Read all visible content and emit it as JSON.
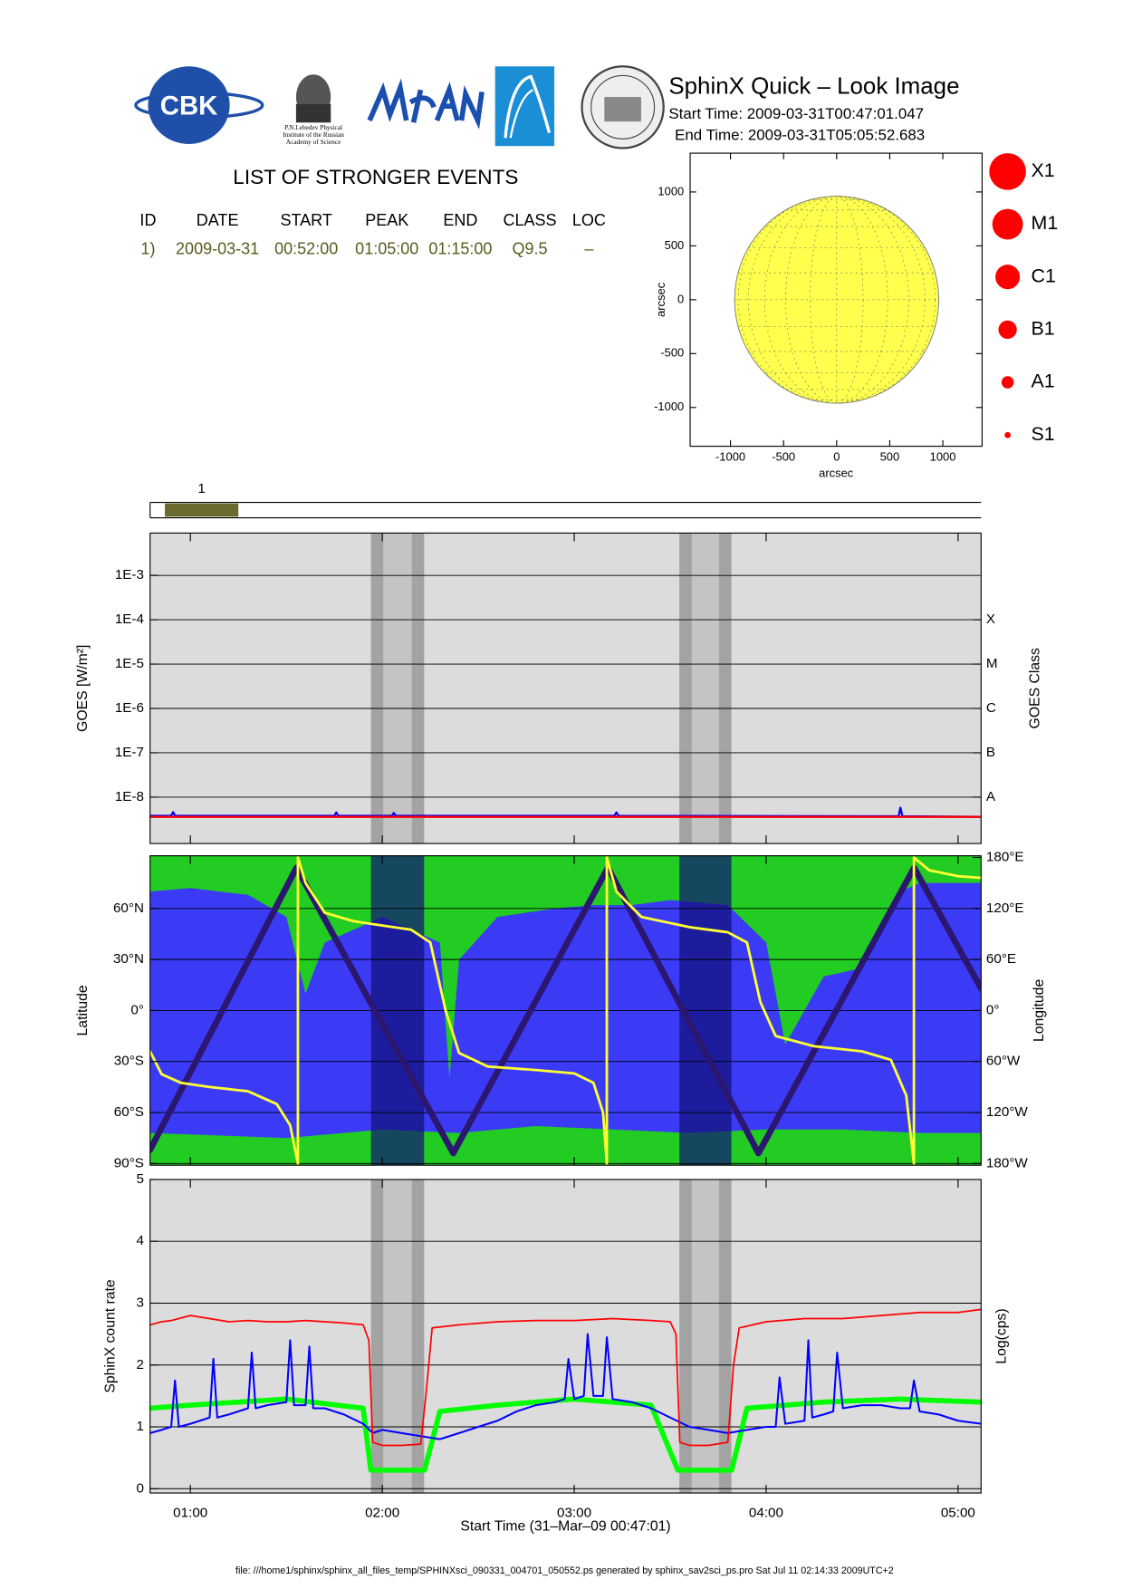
{
  "header": {
    "title": "SphinX Quick – Look Image",
    "start_time": "Start Time: 2009-03-31T00:47:01.047",
    "end_time": "End Time: 2009-03-31T05:05:52.683"
  },
  "logos": {
    "cbk": "CBK",
    "lebedev": [
      "P.N.Lebedev Physical",
      "Institute of the Russian",
      "Academy of Science"
    ]
  },
  "events": {
    "title": "LIST OF STRONGER EVENTS",
    "columns": [
      "ID",
      "DATE",
      "START",
      "PEAK",
      "END",
      "CLASS",
      "LOC"
    ],
    "rows": [
      [
        "1)",
        "2009-03-31",
        "00:52:00",
        "01:05:00",
        "01:15:00",
        "Q9.5",
        "–"
      ]
    ]
  },
  "footer": "file: ///home1/sphinx/sphinx_all_files_temp/SPHINXsci_090331_004701_050552.ps generated by sphinx_sav2sci_ps.pro Sat Jul 11 02:14:33 2009UTC+2",
  "chart_data": [
    {
      "type": "disk",
      "xlabel": "arcsec",
      "ylabel": "arcsec",
      "xlim": [
        -1380,
        1370
      ],
      "ylim": [
        -1360,
        1360
      ],
      "xticks": [
        -1000,
        -500,
        0,
        500,
        1000
      ],
      "yticks": [
        -1000,
        -500,
        0,
        500,
        1000
      ],
      "radius": 961,
      "color": "#ffff4d",
      "legend_labels": [
        "X1",
        "M1",
        "C1",
        "B1",
        "A1",
        "S1"
      ],
      "legend_color": "#ff0000"
    },
    {
      "type": "timeline",
      "xlim": [
        0.79,
        5.12
      ],
      "color": "#6b6b30",
      "events": [
        {
          "label": "1",
          "start": 0.867,
          "end": 1.25
        }
      ]
    },
    {
      "type": "line",
      "ylabel": "GOES [W/m²]",
      "y2label": "GOES Class",
      "xlim": [
        0.79,
        5.12
      ],
      "ylog": true,
      "ylim": [
        9e-10,
        0.009
      ],
      "yticks": [
        {
          "value": 1e-08,
          "label": "1E-8"
        },
        {
          "value": 1e-07,
          "label": "1E-7"
        },
        {
          "value": 1e-06,
          "label": "1E-6"
        },
        {
          "value": 1e-05,
          "label": "1E-5"
        },
        {
          "value": 0.0001,
          "label": "1E-4"
        },
        {
          "value": 0.001,
          "label": "1E-3"
        }
      ],
      "y2lim": [
        9e-10,
        0.009
      ],
      "y2ticks": [
        {
          "value": 1e-08,
          "label": "A"
        },
        {
          "value": 1e-07,
          "label": "B"
        },
        {
          "value": 1e-06,
          "label": "C"
        },
        {
          "value": 1e-05,
          "label": "M"
        },
        {
          "value": 0.0001,
          "label": "X"
        }
      ],
      "background": "#dcdcdc",
      "grid": true,
      "shaded": [
        {
          "x": [
            1.941,
            2.218
          ],
          "color": "#a3a3a3"
        },
        {
          "x": [
            2.005,
            2.154
          ],
          "color": "#c4c4c4"
        },
        {
          "x": [
            3.548,
            3.819
          ],
          "color": "#a3a3a3"
        },
        {
          "x": [
            3.612,
            3.755
          ],
          "color": "#c4c4c4"
        }
      ],
      "series": [
        {
          "color": "#0000ff",
          "x": [
            0.79,
            0.9,
            0.91,
            0.92,
            1.75,
            1.76,
            1.77,
            2.05,
            2.06,
            2.07,
            3.21,
            3.22,
            3.23,
            4.69,
            4.7,
            4.71,
            5.12
          ],
          "values": [
            3.8e-09,
            3.8e-09,
            4.6e-09,
            3.8e-09,
            3.8e-09,
            4.5e-09,
            3.8e-09,
            3.8e-09,
            4.4e-09,
            3.8e-09,
            3.8e-09,
            4.5e-09,
            3.8e-09,
            3.7e-09,
            5.8e-09,
            3.7e-09,
            3.6e-09
          ]
        },
        {
          "color": "#ff0000",
          "x": [
            0.79,
            5.12
          ],
          "values": [
            3.6e-09,
            3.6e-09
          ]
        }
      ]
    },
    {
      "type": "line",
      "ylabel": "Latitude",
      "y2label": "Longitude",
      "xlim": [
        0.79,
        5.12
      ],
      "ylim": [
        -91,
        91
      ],
      "yticks": [
        {
          "value": -90,
          "label": "90°S"
        },
        {
          "value": -60,
          "label": "60°S"
        },
        {
          "value": -30,
          "label": "30°S"
        },
        {
          "value": 0,
          "label": "0°"
        },
        {
          "value": 30,
          "label": "30°N"
        },
        {
          "value": 60,
          "label": "60°N"
        }
      ],
      "y2lim": [
        -182,
        182
      ],
      "y2ticks": [
        {
          "value": -180,
          "label": "180°W"
        },
        {
          "value": -120,
          "label": "120°W"
        },
        {
          "value": -60,
          "label": "60°W"
        },
        {
          "value": 0,
          "label": "0°"
        },
        {
          "value": 60,
          "label": "60°E"
        },
        {
          "value": 120,
          "label": "120°E"
        },
        {
          "value": 180,
          "label": "180°E"
        }
      ],
      "background": "#3b3bf6",
      "grid": true,
      "shaded": [
        {
          "x": [
            1.941,
            2.218
          ],
          "color": "rgba(16,16,120,0.7)"
        },
        {
          "x": [
            3.548,
            3.819
          ],
          "color": "rgba(16,16,120,0.7)"
        }
      ],
      "series": [
        {
          "color": "#22cc22",
          "fill": "top",
          "x": [
            0.79,
            1.0,
            1.3,
            1.5,
            1.6,
            1.7,
            1.8,
            1.9,
            2.0,
            2.1,
            2.2,
            2.3,
            2.35,
            2.4,
            2.6,
            2.9,
            3.1,
            3.3,
            3.5,
            3.8,
            4.0,
            4.1,
            4.3,
            4.5,
            4.6,
            4.7,
            4.8,
            5.12
          ],
          "values": [
            70,
            72,
            68,
            55,
            10,
            40,
            45,
            50,
            55,
            50,
            45,
            40,
            -40,
            30,
            55,
            60,
            62,
            62,
            65,
            62,
            40,
            -20,
            20,
            25,
            50,
            70,
            75,
            75
          ]
        },
        {
          "color": "#22cc22",
          "fill": "bottom",
          "x": [
            0.79,
            1.5,
            2.0,
            2.4,
            2.8,
            3.2,
            3.6,
            4.0,
            4.4,
            4.8,
            5.12
          ],
          "values": [
            -72,
            -75,
            -70,
            -72,
            -68,
            -70,
            -72,
            -70,
            -70,
            -72,
            -72
          ]
        },
        {
          "color": "#2b1670",
          "x": [
            0.79,
            1.553,
            2.37,
            3.176,
            3.96,
            4.771,
            5.12
          ],
          "values": [
            -82,
            84,
            -84,
            84,
            -84,
            84,
            13
          ]
        },
        {
          "color": "#ffff33",
          "axis": "y2",
          "x": [
            0.79,
            0.85,
            0.95,
            1.1,
            1.3,
            1.45,
            1.52,
            1.56,
            1.56,
            1.6,
            1.7,
            1.85,
            2.0,
            2.15,
            2.25,
            2.33,
            2.4,
            2.55,
            2.8,
            3.0,
            3.1,
            3.15,
            3.17,
            3.17,
            3.22,
            3.35,
            3.6,
            3.8,
            3.9,
            3.97,
            4.05,
            4.25,
            4.5,
            4.65,
            4.73,
            4.77,
            4.77,
            4.85,
            5.0,
            5.12
          ],
          "values": [
            -48,
            -75,
            -85,
            -90,
            -95,
            -110,
            -135,
            -180,
            180,
            150,
            115,
            105,
            100,
            95,
            80,
            0,
            -50,
            -66,
            -70,
            -74,
            -85,
            -120,
            -180,
            180,
            140,
            110,
            98,
            92,
            80,
            10,
            -30,
            -42,
            -48,
            -58,
            -100,
            -180,
            180,
            165,
            158,
            156
          ]
        }
      ]
    },
    {
      "type": "line",
      "ylabel": "SphinX count rate",
      "y2label": "Log(cps)",
      "xlabel": "Start Time (31–Mar–09 00:47:01)",
      "xlim": [
        0.79,
        5.12
      ],
      "xticks": [
        {
          "value": 1,
          "label": "01:00"
        },
        {
          "value": 2,
          "label": "02:00"
        },
        {
          "value": 3,
          "label": "03:00"
        },
        {
          "value": 4,
          "label": "04:00"
        },
        {
          "value": 5,
          "label": "05:00"
        }
      ],
      "ylim": [
        -0.07,
        5
      ],
      "yticks": [
        0,
        1,
        2,
        3,
        4,
        5
      ],
      "background": "#dcdcdc",
      "grid": true,
      "shaded": [
        {
          "x": [
            1.941,
            2.218
          ],
          "color": "#a3a3a3"
        },
        {
          "x": [
            2.005,
            2.154
          ],
          "color": "#c4c4c4"
        },
        {
          "x": [
            3.548,
            3.819
          ],
          "color": "#a3a3a3"
        },
        {
          "x": [
            3.612,
            3.755
          ],
          "color": "#c4c4c4"
        }
      ],
      "series": [
        {
          "color": "#00ff00",
          "x": [
            0.79,
            1.0,
            1.5,
            1.9,
            1.94,
            2.22,
            2.3,
            2.6,
            3.0,
            3.4,
            3.54,
            3.82,
            3.9,
            4.3,
            4.7,
            5.12
          ],
          "values": [
            1.3,
            1.35,
            1.45,
            1.3,
            0.3,
            0.3,
            1.25,
            1.35,
            1.45,
            1.35,
            0.3,
            0.3,
            1.3,
            1.4,
            1.45,
            1.4
          ]
        },
        {
          "color": "#0000ff",
          "x": [
            0.79,
            0.85,
            0.9,
            0.92,
            0.94,
            1.0,
            1.05,
            1.1,
            1.12,
            1.14,
            1.2,
            1.3,
            1.32,
            1.34,
            1.4,
            1.5,
            1.52,
            1.54,
            1.6,
            1.62,
            1.64,
            1.7,
            1.8,
            1.9,
            1.95,
            2.0,
            2.1,
            2.2,
            2.3,
            2.4,
            2.5,
            2.6,
            2.7,
            2.8,
            2.9,
            2.95,
            2.97,
            3.0,
            3.05,
            3.07,
            3.1,
            3.15,
            3.17,
            3.2,
            3.3,
            3.4,
            3.5,
            3.6,
            3.7,
            3.8,
            3.9,
            4.0,
            4.05,
            4.07,
            4.1,
            4.2,
            4.22,
            4.24,
            4.3,
            4.35,
            4.37,
            4.4,
            4.5,
            4.6,
            4.7,
            4.75,
            4.77,
            4.8,
            4.9,
            5.0,
            5.12
          ],
          "values": [
            0.9,
            0.95,
            1.0,
            1.75,
            1.0,
            1.05,
            1.1,
            1.15,
            2.1,
            1.15,
            1.2,
            1.3,
            2.2,
            1.3,
            1.35,
            1.4,
            2.4,
            1.35,
            1.35,
            2.3,
            1.3,
            1.3,
            1.2,
            1.05,
            0.9,
            0.95,
            0.9,
            0.85,
            0.8,
            0.9,
            1.0,
            1.1,
            1.25,
            1.35,
            1.4,
            1.45,
            2.1,
            1.45,
            1.5,
            2.5,
            1.5,
            1.5,
            2.45,
            1.45,
            1.4,
            1.3,
            1.15,
            1.0,
            0.95,
            0.9,
            0.95,
            1.0,
            1.0,
            1.8,
            1.05,
            1.1,
            2.4,
            1.15,
            1.2,
            1.25,
            2.2,
            1.3,
            1.35,
            1.35,
            1.3,
            1.3,
            1.75,
            1.25,
            1.2,
            1.1,
            1.05
          ]
        },
        {
          "color": "#ff0000",
          "x": [
            0.79,
            0.85,
            0.9,
            1.0,
            1.1,
            1.2,
            1.3,
            1.4,
            1.5,
            1.6,
            1.7,
            1.8,
            1.9,
            1.93,
            1.95,
            2.0,
            2.1,
            2.2,
            2.23,
            2.26,
            2.4,
            2.6,
            2.8,
            3.0,
            3.2,
            3.4,
            3.5,
            3.53,
            3.55,
            3.6,
            3.7,
            3.8,
            3.83,
            3.86,
            4.0,
            4.2,
            4.4,
            4.6,
            4.8,
            5.0,
            5.12
          ],
          "values": [
            2.65,
            2.7,
            2.72,
            2.8,
            2.75,
            2.7,
            2.72,
            2.7,
            2.7,
            2.72,
            2.7,
            2.68,
            2.65,
            2.4,
            0.75,
            0.7,
            0.7,
            0.72,
            1.6,
            2.6,
            2.65,
            2.7,
            2.72,
            2.72,
            2.75,
            2.72,
            2.7,
            2.5,
            0.75,
            0.7,
            0.7,
            0.75,
            2.0,
            2.6,
            2.7,
            2.75,
            2.75,
            2.8,
            2.85,
            2.85,
            2.9
          ]
        }
      ]
    }
  ]
}
